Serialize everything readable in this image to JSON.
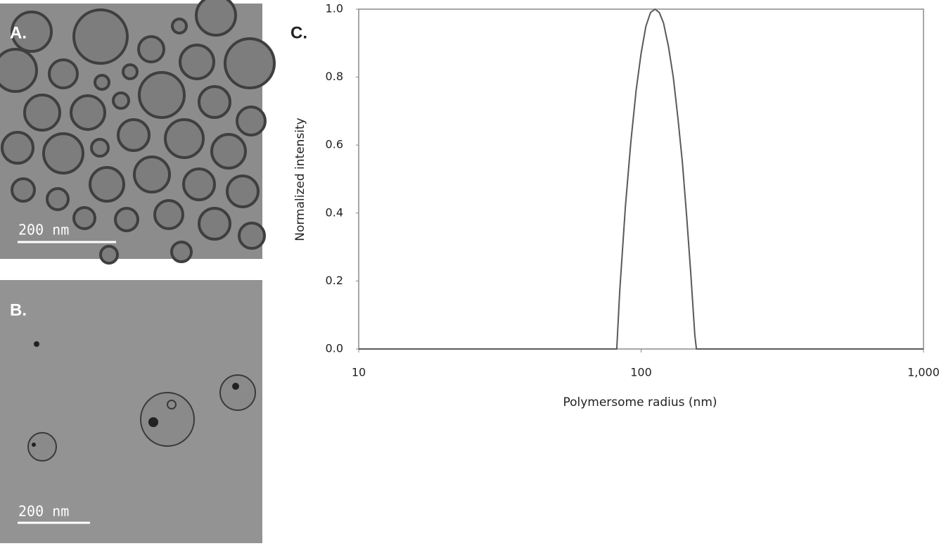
{
  "panel_a": {
    "label": "A.",
    "scale_bar": "200 nm"
  },
  "panel_b": {
    "label": "B.",
    "scale_bar": "200 nm"
  },
  "chart_data": {
    "type": "line",
    "label": "C.",
    "x_label": "Polymersome radius (nm)",
    "y_label": "Normalized intensity",
    "xscale": "log",
    "x": [
      10,
      82,
      84,
      88,
      92,
      96,
      100,
      104,
      108,
      112,
      116,
      120,
      125,
      130,
      135,
      140,
      145,
      150,
      155,
      157,
      1000
    ],
    "series": [
      {
        "name": "Normalized intensity",
        "color": "#595959",
        "values": [
          0,
          0,
          0.17,
          0.42,
          0.61,
          0.76,
          0.87,
          0.95,
          0.99,
          1.0,
          0.99,
          0.96,
          0.89,
          0.8,
          0.68,
          0.55,
          0.39,
          0.22,
          0.04,
          0,
          0
        ]
      }
    ],
    "xlim": [
      10,
      1000
    ],
    "xticks": [
      10,
      100,
      {
        "value": 1000,
        "label": "1,000"
      }
    ],
    "ylim": [
      0,
      1
    ],
    "yticks": [
      {
        "value": 0,
        "label": "0.0"
      },
      0.2,
      0.4,
      0.6,
      0.8,
      {
        "value": 1,
        "label": "1.0"
      }
    ]
  }
}
